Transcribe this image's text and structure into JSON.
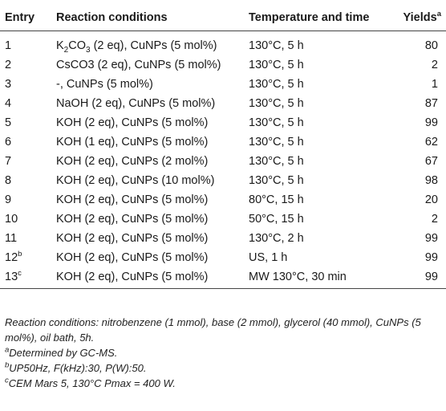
{
  "headers": {
    "entry": "Entry",
    "conditions": "Reaction conditions",
    "temp_time": "Temperature and time",
    "yields": "Yields",
    "yields_sup": "a"
  },
  "rows": [
    {
      "entry": "1",
      "entry_sup": "",
      "base_pre": "K",
      "base_sub": "2",
      "base_post": "CO",
      "base_sub2": "3",
      "conditions": " (2 eq), CuNPs (5 mol%)",
      "temp_time": "130°C, 5 h",
      "yield": "80"
    },
    {
      "entry": "2",
      "entry_sup": "",
      "conditions": "CsCO3 (2 eq), CuNPs (5 mol%)",
      "temp_time": "130°C, 5 h",
      "yield": "2"
    },
    {
      "entry": "3",
      "entry_sup": "",
      "conditions": "-, CuNPs (5 mol%)",
      "temp_time": "130°C, 5 h",
      "yield": "1"
    },
    {
      "entry": "4",
      "entry_sup": "",
      "conditions": "NaOH (2 eq), CuNPs (5 mol%)",
      "temp_time": "130°C, 5 h",
      "yield": "87"
    },
    {
      "entry": "5",
      "entry_sup": "",
      "conditions": "KOH (2 eq), CuNPs (5 mol%)",
      "temp_time": "130°C, 5 h",
      "yield": "99"
    },
    {
      "entry": "6",
      "entry_sup": "",
      "conditions": "KOH (1 eq), CuNPs (5 mol%)",
      "temp_time": "130°C, 5 h",
      "yield": "62"
    },
    {
      "entry": "7",
      "entry_sup": "",
      "conditions": "KOH (2 eq), CuNPs (2 mol%)",
      "temp_time": "130°C, 5 h",
      "yield": "67"
    },
    {
      "entry": "8",
      "entry_sup": "",
      "conditions": "KOH (2 eq), CuNPs (10 mol%)",
      "temp_time": "130°C, 5 h",
      "yield": "98"
    },
    {
      "entry": "9",
      "entry_sup": "",
      "conditions": "KOH (2 eq), CuNPs (5 mol%)",
      "temp_time": "80°C, 15 h",
      "yield": "20"
    },
    {
      "entry": "10",
      "entry_sup": "",
      "conditions": "KOH (2 eq), CuNPs (5 mol%)",
      "temp_time": "50°C, 15 h",
      "yield": "2"
    },
    {
      "entry": "11",
      "entry_sup": "",
      "conditions": "KOH (2 eq), CuNPs (5 mol%)",
      "temp_time": "130°C, 2 h",
      "yield": "99"
    },
    {
      "entry": "12",
      "entry_sup": "b",
      "conditions": "KOH (2 eq), CuNPs (5 mol%)",
      "temp_time": "US, 1 h",
      "yield": "99"
    },
    {
      "entry": "13",
      "entry_sup": "c",
      "conditions": "KOH (2 eq), CuNPs (5 mol%)",
      "temp_time": "MW 130°C, 30 min",
      "yield": "99"
    }
  ],
  "notes": {
    "main": "Reaction conditions: nitrobenzene (1 mmol), base (2 mmol), glycerol (40 mmol), CuNPs (5 mol%), oil bath, 5h.",
    "a_sup": "a",
    "a": "Determined by GC-MS.",
    "b_sup": "b",
    "b": "UP50Hz, F(kHz):30, P(W):50.",
    "c_sup": "c",
    "c": "CEM Mars 5, 130°C Pmax = 400 W."
  }
}
